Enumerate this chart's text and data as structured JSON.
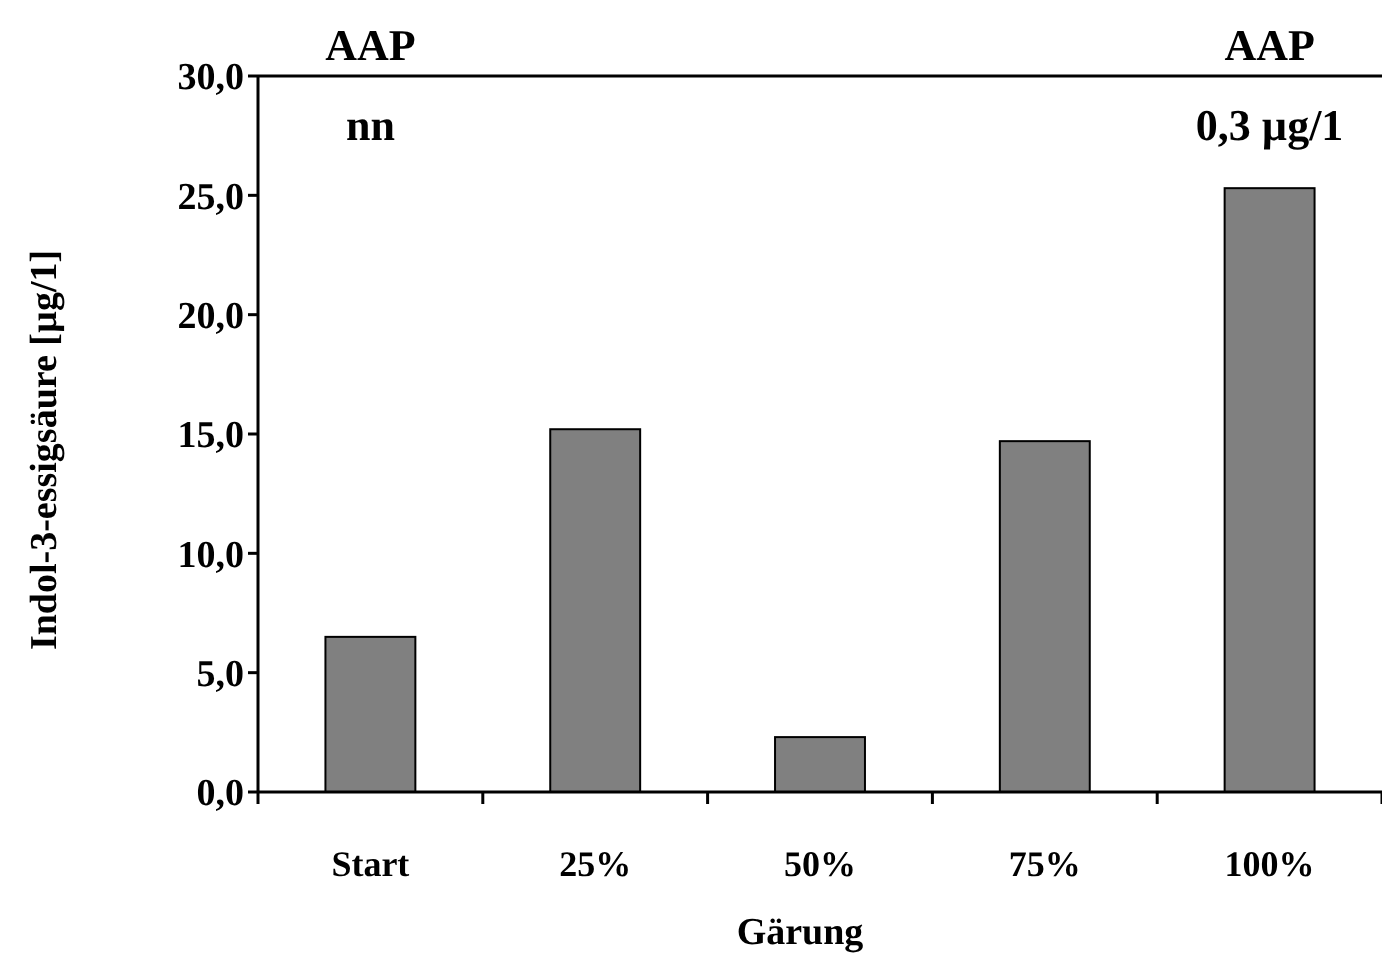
{
  "chart_data": {
    "type": "bar",
    "xlabel": "Gärung",
    "ylabel": "Indol-3-essigsäure [µg/1]",
    "categories": [
      "Start",
      "25%",
      "50%",
      "75%",
      "100%"
    ],
    "values": [
      6.5,
      15.2,
      2.3,
      14.7,
      25.3
    ],
    "color": "#808080",
    "ylim": [
      0,
      30
    ],
    "yticks": [
      {
        "value": 0,
        "label": "0,0"
      },
      {
        "value": 5,
        "label": "5,0"
      },
      {
        "value": 10,
        "label": "10,0"
      },
      {
        "value": 15,
        "label": "15,0"
      },
      {
        "value": 20,
        "label": "20,0"
      },
      {
        "value": 25,
        "label": "25,0"
      },
      {
        "value": 30,
        "label": "30,0"
      }
    ],
    "grid": false,
    "annotations": [
      "AAP",
      "nn",
      "AAP",
      "0,3 µg/1"
    ]
  }
}
